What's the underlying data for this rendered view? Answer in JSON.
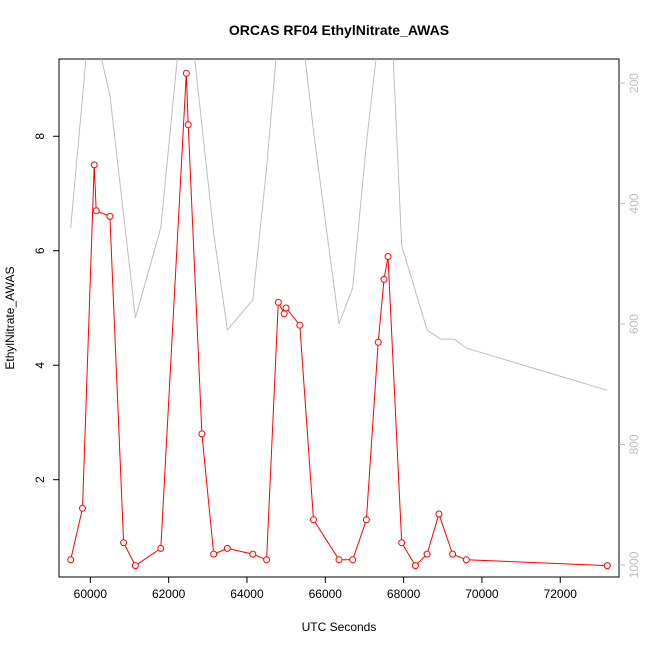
{
  "chart_data": {
    "type": "line",
    "title": "ORCAS RF04 EthylNitrate_AWAS",
    "xlabel": "UTC Seconds",
    "ylabel": "EthylNitrate_AWAS",
    "xlim": [
      59200,
      73500
    ],
    "ylim": [
      0.3,
      9.35
    ],
    "y2lim": [
      1020,
      160
    ],
    "x_ticks": [
      60000,
      62000,
      64000,
      66000,
      68000,
      70000,
      72000
    ],
    "x_tick_labels": [
      "60000",
      "62000",
      "64000",
      "66000",
      "68000",
      "70000",
      "72000"
    ],
    "y_ticks": [
      2,
      4,
      6,
      8
    ],
    "y_tick_labels": [
      "2",
      "4",
      "6",
      "8"
    ],
    "y2_ticks": [
      200,
      400,
      600,
      800,
      1000
    ],
    "y2_tick_labels": [
      "200",
      "400",
      "600",
      "800",
      "1000"
    ],
    "grid": false,
    "series": [
      {
        "axis": "left",
        "color": "#ff0000",
        "marker": "open-circle",
        "x": [
          59500,
          59800,
          60100,
          60150,
          60500,
          60850,
          61150,
          61800,
          62450,
          62500,
          62850,
          63150,
          63500,
          64150,
          64500,
          64800,
          64950,
          65000,
          65350,
          65700,
          66350,
          66700,
          67050,
          67350,
          67500,
          67600,
          67950,
          68300,
          68600,
          68900,
          69250,
          69600,
          73200
        ],
        "values": [
          0.6,
          1.5,
          7.5,
          6.7,
          6.6,
          0.9,
          0.5,
          0.8,
          9.1,
          8.2,
          2.8,
          0.7,
          0.8,
          0.7,
          0.6,
          5.1,
          4.9,
          5.0,
          4.7,
          1.3,
          0.6,
          0.6,
          1.3,
          4.4,
          5.5,
          5.9,
          0.9,
          0.5,
          0.7,
          1.4,
          0.7,
          0.6,
          0.5
        ]
      },
      {
        "axis": "right",
        "color": "#bebebe",
        "marker": "none",
        "x": [
          59500,
          60000,
          60500,
          61150,
          61800,
          62400,
          62600,
          63150,
          63500,
          64150,
          64500,
          64900,
          65400,
          65700,
          66350,
          66700,
          67050,
          67400,
          67500,
          67700,
          67950,
          68600,
          68950,
          69300,
          69600,
          73200
        ],
        "values": [
          440,
          80,
          220,
          590,
          440,
          40,
          120,
          450,
          610,
          560,
          340,
          40,
          110,
          280,
          600,
          540,
          300,
          100,
          80,
          110,
          470,
          610,
          625,
          625,
          640,
          710
        ]
      }
    ]
  }
}
